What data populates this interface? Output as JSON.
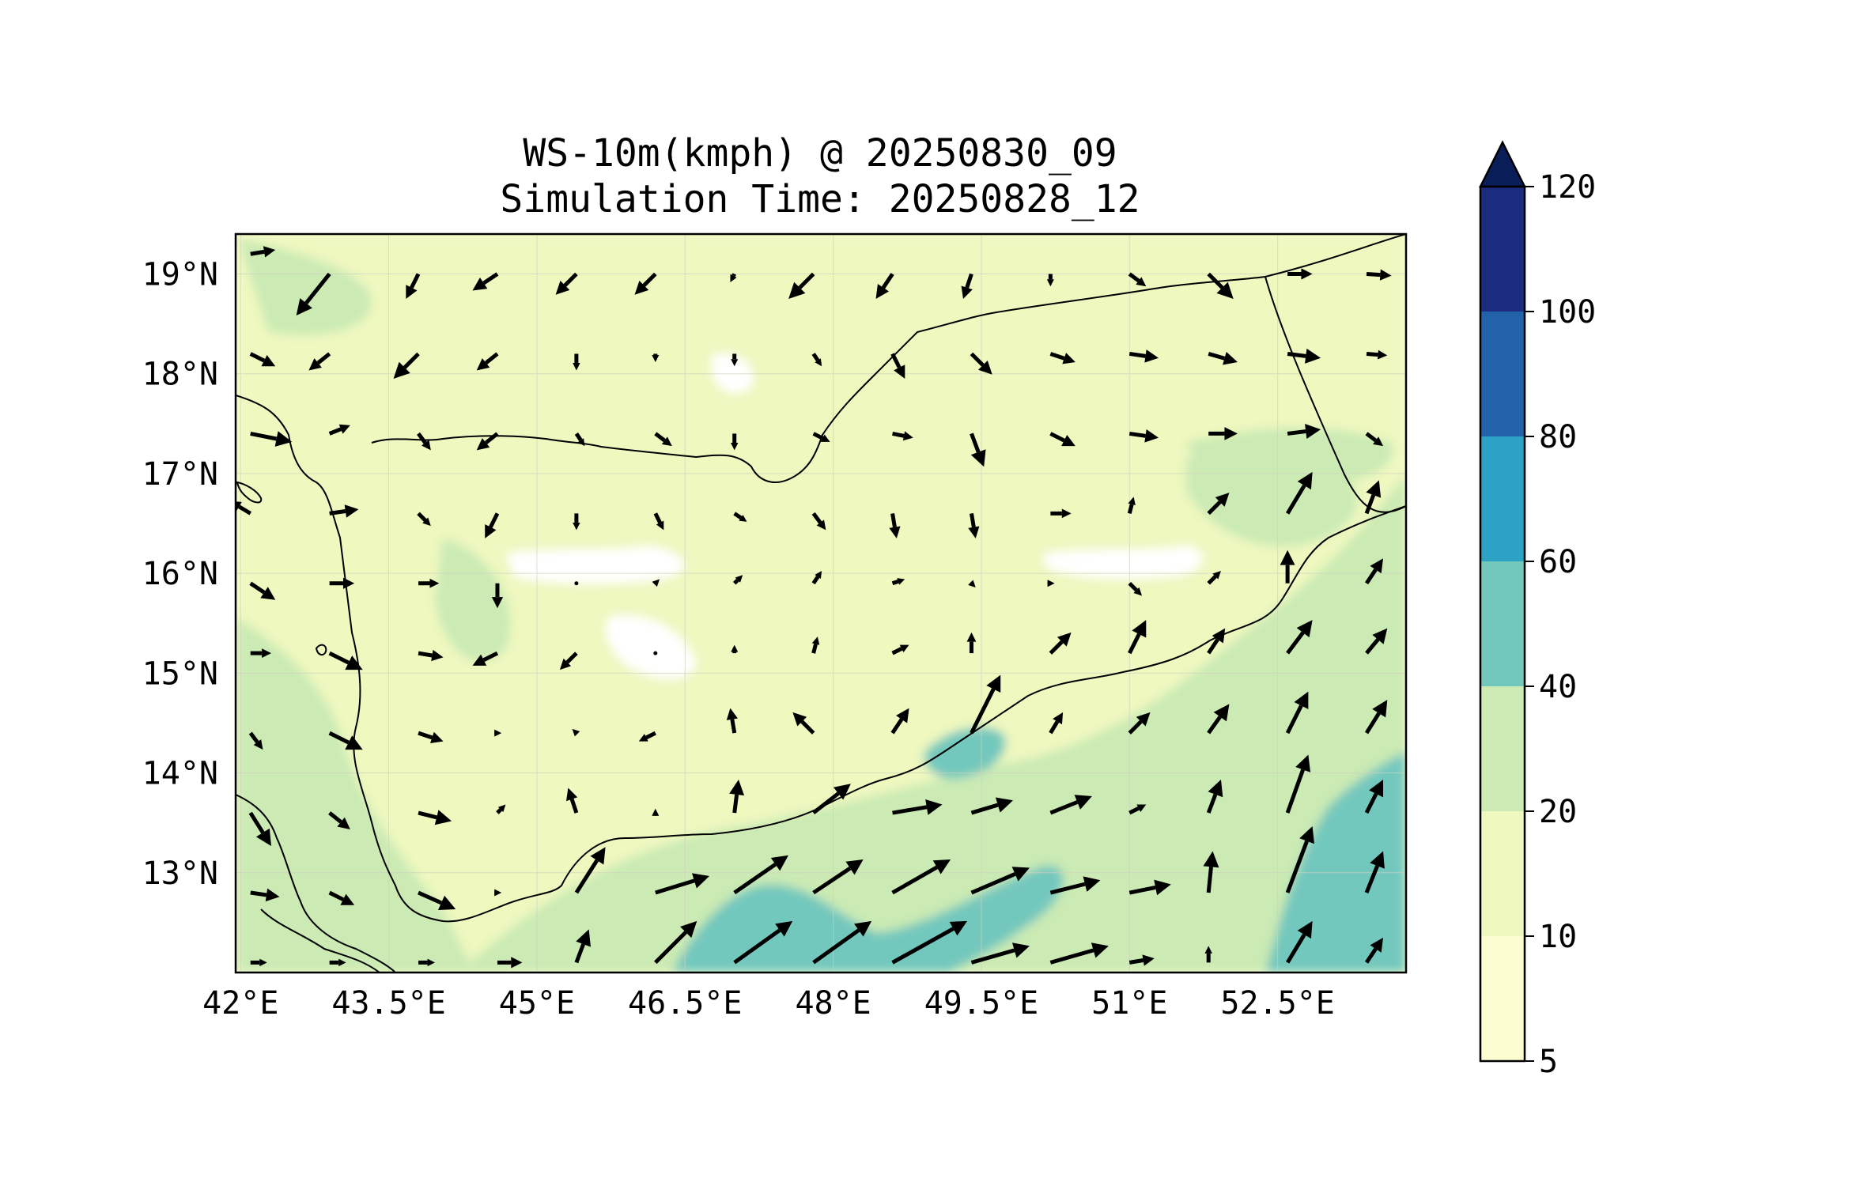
{
  "title": {
    "line1": "WS-10m(kmph) @ 20250830_09",
    "line2": "Simulation Time: 20250828_12"
  },
  "map": {
    "lon_range": [
      41.95,
      53.8
    ],
    "lat_range": [
      12.0,
      19.4
    ],
    "x_ticks": [
      {
        "value": 42.0,
        "label": "42°E"
      },
      {
        "value": 43.5,
        "label": "43.5°E"
      },
      {
        "value": 45.0,
        "label": "45°E"
      },
      {
        "value": 46.5,
        "label": "46.5°E"
      },
      {
        "value": 48.0,
        "label": "48°E"
      },
      {
        "value": 49.5,
        "label": "49.5°E"
      },
      {
        "value": 51.0,
        "label": "51°E"
      },
      {
        "value": 52.5,
        "label": "52.5°E"
      }
    ],
    "y_ticks": [
      {
        "value": 19,
        "label": "19°N"
      },
      {
        "value": 18,
        "label": "18°N"
      },
      {
        "value": 17,
        "label": "17°N"
      },
      {
        "value": 16,
        "label": "16°N"
      },
      {
        "value": 15,
        "label": "15°N"
      },
      {
        "value": 14,
        "label": "14°N"
      },
      {
        "value": 13,
        "label": "13°N"
      }
    ],
    "gridlines": true,
    "colors": {
      "background": "#fdfed0",
      "band_10_20": "#eef8bf",
      "band_20_40": "#cbeab4",
      "band_40_60": "#73c8bd",
      "white_spots": "#ffffff",
      "border": "#000000"
    }
  },
  "colorbar": {
    "levels": [
      5,
      10,
      20,
      40,
      60,
      80,
      100,
      120
    ],
    "labels": [
      "5",
      "10",
      "20",
      "40",
      "60",
      "80",
      "100",
      "120"
    ],
    "colors": [
      "#fdfed0",
      "#eef8bf",
      "#cbeab4",
      "#73c8bd",
      "#2ca2c4",
      "#2262a9",
      "#1c2c80"
    ],
    "extend_color": "#091d59"
  },
  "chart_data": {
    "type": "quiver",
    "field": "10 m wind speed (kmph)",
    "valid_time": "20250830_09",
    "simulation_time": "20250828_12",
    "xlim": [
      41.95,
      53.8
    ],
    "ylim": [
      12.0,
      19.4
    ],
    "vectors": [
      {
        "lon": 42.1,
        "lat": 19.2,
        "u": 3,
        "v": 0.5
      },
      {
        "lon": 42.9,
        "lat": 19.0,
        "u": -4,
        "v": -5
      },
      {
        "lon": 43.8,
        "lat": 19.0,
        "u": -1.5,
        "v": -3
      },
      {
        "lon": 44.6,
        "lat": 19.0,
        "u": -3,
        "v": -2
      },
      {
        "lon": 45.4,
        "lat": 19.0,
        "u": -2.5,
        "v": -2.5
      },
      {
        "lon": 46.2,
        "lat": 19.0,
        "u": -2.5,
        "v": -2.5
      },
      {
        "lon": 47.0,
        "lat": 19.0,
        "u": -0.5,
        "v": -1
      },
      {
        "lon": 47.8,
        "lat": 19.0,
        "u": -3,
        "v": -3
      },
      {
        "lon": 48.6,
        "lat": 19.0,
        "u": -2,
        "v": -3
      },
      {
        "lon": 49.4,
        "lat": 19.0,
        "u": -1,
        "v": -3
      },
      {
        "lon": 50.2,
        "lat": 19.0,
        "u": 0,
        "v": -1.5
      },
      {
        "lon": 51.0,
        "lat": 19.0,
        "u": 2,
        "v": -1.5
      },
      {
        "lon": 51.8,
        "lat": 19.0,
        "u": 3,
        "v": -3
      },
      {
        "lon": 52.6,
        "lat": 19.0,
        "u": 3,
        "v": 0
      },
      {
        "lon": 53.4,
        "lat": 19.0,
        "u": 3,
        "v": -0.2
      },
      {
        "lon": 42.1,
        "lat": 18.2,
        "u": 3,
        "v": -1.5
      },
      {
        "lon": 42.9,
        "lat": 18.2,
        "u": -2.5,
        "v": -2
      },
      {
        "lon": 43.8,
        "lat": 18.2,
        "u": -3,
        "v": -3
      },
      {
        "lon": 44.6,
        "lat": 18.2,
        "u": -2.5,
        "v": -2
      },
      {
        "lon": 45.4,
        "lat": 18.2,
        "u": 0,
        "v": -2
      },
      {
        "lon": 46.2,
        "lat": 18.2,
        "u": 0,
        "v": -1
      },
      {
        "lon": 47.0,
        "lat": 18.2,
        "u": 0,
        "v": -1.5
      },
      {
        "lon": 47.8,
        "lat": 18.2,
        "u": 1,
        "v": -1.5
      },
      {
        "lon": 48.6,
        "lat": 18.2,
        "u": 1.5,
        "v": -3
      },
      {
        "lon": 49.4,
        "lat": 18.2,
        "u": 2.5,
        "v": -2.5
      },
      {
        "lon": 50.2,
        "lat": 18.2,
        "u": 3,
        "v": -1
      },
      {
        "lon": 51.0,
        "lat": 18.2,
        "u": 3.5,
        "v": -0.5
      },
      {
        "lon": 51.8,
        "lat": 18.2,
        "u": 3.5,
        "v": -1
      },
      {
        "lon": 52.6,
        "lat": 18.2,
        "u": 4,
        "v": -0.5
      },
      {
        "lon": 53.4,
        "lat": 18.2,
        "u": 2.5,
        "v": -0.2
      },
      {
        "lon": 42.1,
        "lat": 17.4,
        "u": 5,
        "v": -1
      },
      {
        "lon": 42.9,
        "lat": 17.4,
        "u": 2.5,
        "v": 1
      },
      {
        "lon": 43.8,
        "lat": 17.4,
        "u": 1.5,
        "v": -2
      },
      {
        "lon": 44.6,
        "lat": 17.4,
        "u": -2.5,
        "v": -2
      },
      {
        "lon": 45.4,
        "lat": 17.4,
        "u": 1,
        "v": -1.5
      },
      {
        "lon": 46.2,
        "lat": 17.4,
        "u": 2,
        "v": -1.5
      },
      {
        "lon": 47.0,
        "lat": 17.4,
        "u": 0,
        "v": -2
      },
      {
        "lon": 47.8,
        "lat": 17.4,
        "u": 2,
        "v": -1
      },
      {
        "lon": 48.6,
        "lat": 17.4,
        "u": 2.5,
        "v": -0.5
      },
      {
        "lon": 49.4,
        "lat": 17.4,
        "u": 1.5,
        "v": -4
      },
      {
        "lon": 50.2,
        "lat": 17.4,
        "u": 3,
        "v": -1.5
      },
      {
        "lon": 51.0,
        "lat": 17.4,
        "u": 3.5,
        "v": -0.5
      },
      {
        "lon": 51.8,
        "lat": 17.4,
        "u": 3.5,
        "v": 0
      },
      {
        "lon": 52.6,
        "lat": 17.4,
        "u": 4,
        "v": 0.5
      },
      {
        "lon": 53.4,
        "lat": 17.4,
        "u": 2,
        "v": -1.5
      },
      {
        "lon": 42.1,
        "lat": 16.6,
        "u": -2.5,
        "v": 1.5
      },
      {
        "lon": 42.9,
        "lat": 16.6,
        "u": 3.5,
        "v": 0.5
      },
      {
        "lon": 43.8,
        "lat": 16.6,
        "u": 1.5,
        "v": -1.5
      },
      {
        "lon": 44.6,
        "lat": 16.6,
        "u": -1.5,
        "v": -3
      },
      {
        "lon": 45.4,
        "lat": 16.6,
        "u": 0,
        "v": -2
      },
      {
        "lon": 46.2,
        "lat": 16.6,
        "u": 1,
        "v": -2
      },
      {
        "lon": 47.0,
        "lat": 16.6,
        "u": 1.5,
        "v": -1
      },
      {
        "lon": 47.8,
        "lat": 16.6,
        "u": 1.5,
        "v": -2
      },
      {
        "lon": 48.6,
        "lat": 16.6,
        "u": 0.5,
        "v": -3
      },
      {
        "lon": 49.4,
        "lat": 16.6,
        "u": 0.5,
        "v": -3
      },
      {
        "lon": 50.2,
        "lat": 16.6,
        "u": 2.5,
        "v": 0
      },
      {
        "lon": 51.0,
        "lat": 16.6,
        "u": 0.5,
        "v": 2
      },
      {
        "lon": 51.8,
        "lat": 16.6,
        "u": 2.5,
        "v": 2.5
      },
      {
        "lon": 52.6,
        "lat": 16.6,
        "u": 3,
        "v": 5
      },
      {
        "lon": 53.4,
        "lat": 16.6,
        "u": 1.5,
        "v": 4
      },
      {
        "lon": 42.1,
        "lat": 15.9,
        "u": 3,
        "v": -2
      },
      {
        "lon": 42.9,
        "lat": 15.9,
        "u": 3,
        "v": 0
      },
      {
        "lon": 43.8,
        "lat": 15.9,
        "u": 2.5,
        "v": 0
      },
      {
        "lon": 44.6,
        "lat": 15.9,
        "u": 0,
        "v": -3
      },
      {
        "lon": 45.4,
        "lat": 15.9,
        "u": 0,
        "v": 0
      },
      {
        "lon": 46.2,
        "lat": 15.9,
        "u": 0.5,
        "v": 0.5
      },
      {
        "lon": 47.0,
        "lat": 15.9,
        "u": 1,
        "v": 1
      },
      {
        "lon": 47.8,
        "lat": 15.9,
        "u": 1,
        "v": 1.5
      },
      {
        "lon": 48.6,
        "lat": 15.9,
        "u": 1.5,
        "v": 0.5
      },
      {
        "lon": 49.4,
        "lat": 15.9,
        "u": 0.5,
        "v": -0.5
      },
      {
        "lon": 50.2,
        "lat": 15.9,
        "u": 0.5,
        "v": 0
      },
      {
        "lon": 51.0,
        "lat": 15.9,
        "u": 1.5,
        "v": -1.5
      },
      {
        "lon": 51.8,
        "lat": 15.9,
        "u": 1.5,
        "v": 1.5
      },
      {
        "lon": 52.6,
        "lat": 15.9,
        "u": 0,
        "v": 4
      },
      {
        "lon": 53.4,
        "lat": 15.9,
        "u": 2,
        "v": 3
      },
      {
        "lon": 42.1,
        "lat": 15.2,
        "u": 2.5,
        "v": 0
      },
      {
        "lon": 42.9,
        "lat": 15.2,
        "u": 4,
        "v": -2
      },
      {
        "lon": 43.8,
        "lat": 15.2,
        "u": 3,
        "v": -0.5
      },
      {
        "lon": 44.6,
        "lat": 15.2,
        "u": -3,
        "v": -1.5
      },
      {
        "lon": 45.4,
        "lat": 15.2,
        "u": -2,
        "v": -2
      },
      {
        "lon": 46.2,
        "lat": 15.2,
        "u": 0,
        "v": 0
      },
      {
        "lon": 47.0,
        "lat": 15.2,
        "u": 0,
        "v": 1
      },
      {
        "lon": 47.8,
        "lat": 15.2,
        "u": 0.5,
        "v": 2
      },
      {
        "lon": 48.6,
        "lat": 15.2,
        "u": 2,
        "v": 1
      },
      {
        "lon": 49.4,
        "lat": 15.2,
        "u": 0,
        "v": 2.5
      },
      {
        "lon": 50.2,
        "lat": 15.2,
        "u": 2.5,
        "v": 2.5
      },
      {
        "lon": 51.0,
        "lat": 15.2,
        "u": 2,
        "v": 4
      },
      {
        "lon": 51.8,
        "lat": 15.2,
        "u": 2,
        "v": 3
      },
      {
        "lon": 52.6,
        "lat": 15.2,
        "u": 3,
        "v": 4
      },
      {
        "lon": 53.4,
        "lat": 15.2,
        "u": 2.5,
        "v": 3
      },
      {
        "lon": 42.1,
        "lat": 14.4,
        "u": 1.5,
        "v": -2
      },
      {
        "lon": 42.9,
        "lat": 14.4,
        "u": 4,
        "v": -2
      },
      {
        "lon": 43.8,
        "lat": 14.4,
        "u": 3,
        "v": -1
      },
      {
        "lon": 44.6,
        "lat": 14.4,
        "u": 0.5,
        "v": 0
      },
      {
        "lon": 45.4,
        "lat": 14.4,
        "u": -0.5,
        "v": 0.5
      },
      {
        "lon": 46.2,
        "lat": 14.4,
        "u": -2,
        "v": -1
      },
      {
        "lon": 47.0,
        "lat": 14.4,
        "u": -0.5,
        "v": 3
      },
      {
        "lon": 47.8,
        "lat": 14.4,
        "u": -2.5,
        "v": 2.5
      },
      {
        "lon": 48.6,
        "lat": 14.4,
        "u": 2,
        "v": 3
      },
      {
        "lon": 49.4,
        "lat": 14.4,
        "u": 3.5,
        "v": 7
      },
      {
        "lon": 50.2,
        "lat": 14.4,
        "u": 1.5,
        "v": 2.5
      },
      {
        "lon": 51.0,
        "lat": 14.4,
        "u": 2.5,
        "v": 2.5
      },
      {
        "lon": 51.8,
        "lat": 14.4,
        "u": 2.5,
        "v": 3.5
      },
      {
        "lon": 52.6,
        "lat": 14.4,
        "u": 2.5,
        "v": 5
      },
      {
        "lon": 53.4,
        "lat": 14.4,
        "u": 2.5,
        "v": 4
      },
      {
        "lon": 42.1,
        "lat": 13.6,
        "u": 2.5,
        "v": -4
      },
      {
        "lon": 42.9,
        "lat": 13.6,
        "u": 2.5,
        "v": -2
      },
      {
        "lon": 43.8,
        "lat": 13.6,
        "u": 4,
        "v": -1
      },
      {
        "lon": 44.6,
        "lat": 13.6,
        "u": 1,
        "v": 1
      },
      {
        "lon": 45.4,
        "lat": 13.6,
        "u": -1,
        "v": 3
      },
      {
        "lon": 46.2,
        "lat": 13.6,
        "u": 0,
        "v": 0.5
      },
      {
        "lon": 47.0,
        "lat": 13.6,
        "u": 0.5,
        "v": 4
      },
      {
        "lon": 47.8,
        "lat": 13.6,
        "u": 4.5,
        "v": 3.5
      },
      {
        "lon": 48.6,
        "lat": 13.6,
        "u": 6,
        "v": 1
      },
      {
        "lon": 49.4,
        "lat": 13.6,
        "u": 5,
        "v": 1.5
      },
      {
        "lon": 50.2,
        "lat": 13.6,
        "u": 5,
        "v": 2
      },
      {
        "lon": 51.0,
        "lat": 13.6,
        "u": 2,
        "v": 1
      },
      {
        "lon": 51.8,
        "lat": 13.6,
        "u": 1.5,
        "v": 4
      },
      {
        "lon": 52.6,
        "lat": 13.6,
        "u": 2.5,
        "v": 7
      },
      {
        "lon": 53.4,
        "lat": 13.6,
        "u": 2,
        "v": 4
      },
      {
        "lon": 42.1,
        "lat": 12.8,
        "u": 3.5,
        "v": -0.5
      },
      {
        "lon": 42.9,
        "lat": 12.8,
        "u": 3,
        "v": -1.5
      },
      {
        "lon": 43.8,
        "lat": 12.8,
        "u": 4.5,
        "v": -2
      },
      {
        "lon": 44.6,
        "lat": 12.8,
        "u": 0.5,
        "v": 0
      },
      {
        "lon": 45.4,
        "lat": 12.8,
        "u": 3.5,
        "v": 5.5
      },
      {
        "lon": 46.2,
        "lat": 12.8,
        "u": 6.5,
        "v": 2
      },
      {
        "lon": 47.0,
        "lat": 12.8,
        "u": 6.5,
        "v": 4.5
      },
      {
        "lon": 47.8,
        "lat": 12.8,
        "u": 6,
        "v": 4
      },
      {
        "lon": 48.6,
        "lat": 12.8,
        "u": 7,
        "v": 4
      },
      {
        "lon": 49.4,
        "lat": 12.8,
        "u": 7,
        "v": 3
      },
      {
        "lon": 50.2,
        "lat": 12.8,
        "u": 6,
        "v": 1.5
      },
      {
        "lon": 51.0,
        "lat": 12.8,
        "u": 5,
        "v": 1
      },
      {
        "lon": 51.8,
        "lat": 12.8,
        "u": 0.5,
        "v": 5
      },
      {
        "lon": 52.6,
        "lat": 12.8,
        "u": 3,
        "v": 8
      },
      {
        "lon": 53.4,
        "lat": 12.8,
        "u": 2,
        "v": 5
      },
      {
        "lon": 42.1,
        "lat": 12.1,
        "u": 2,
        "v": 0
      },
      {
        "lon": 42.9,
        "lat": 12.1,
        "u": 2,
        "v": 0
      },
      {
        "lon": 43.8,
        "lat": 12.1,
        "u": 2,
        "v": 0
      },
      {
        "lon": 44.6,
        "lat": 12.1,
        "u": 3,
        "v": 0
      },
      {
        "lon": 45.4,
        "lat": 12.1,
        "u": 1.5,
        "v": 4
      },
      {
        "lon": 46.2,
        "lat": 12.1,
        "u": 5,
        "v": 5
      },
      {
        "lon": 47.0,
        "lat": 12.1,
        "u": 7,
        "v": 5
      },
      {
        "lon": 47.8,
        "lat": 12.1,
        "u": 7,
        "v": 5
      },
      {
        "lon": 48.6,
        "lat": 12.1,
        "u": 9,
        "v": 5
      },
      {
        "lon": 49.4,
        "lat": 12.1,
        "u": 7,
        "v": 2
      },
      {
        "lon": 50.2,
        "lat": 12.1,
        "u": 7,
        "v": 2
      },
      {
        "lon": 51.0,
        "lat": 12.1,
        "u": 3,
        "v": 0.5
      },
      {
        "lon": 51.8,
        "lat": 12.1,
        "u": 0,
        "v": 2
      },
      {
        "lon": 52.6,
        "lat": 12.1,
        "u": 3,
        "v": 5
      },
      {
        "lon": 53.4,
        "lat": 12.1,
        "u": 2,
        "v": 3
      }
    ]
  }
}
